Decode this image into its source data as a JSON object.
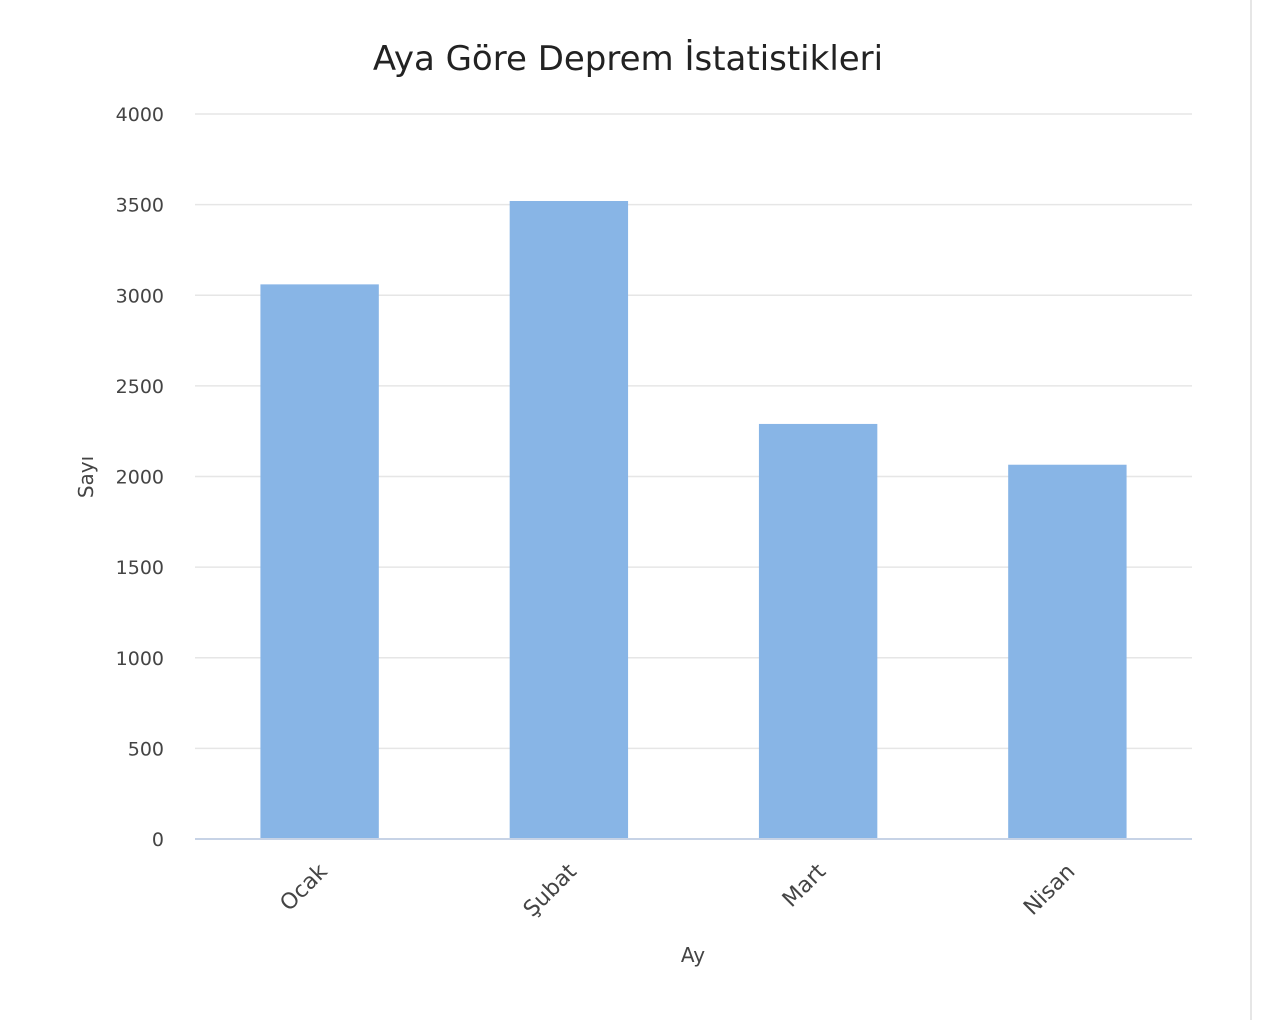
{
  "chart_data": {
    "type": "bar",
    "title": "Aya Göre Deprem İstatistikleri",
    "xlabel": "Ay",
    "ylabel": "Sayı",
    "categories": [
      "Ocak",
      "Şubat",
      "Mart",
      "Nisan"
    ],
    "values": [
      3060,
      3520,
      2290,
      2065
    ],
    "ylim": [
      0,
      4000
    ],
    "yticks": [
      "0",
      "500",
      "1000",
      "1500",
      "2000",
      "2500",
      "3000",
      "3500",
      "4000"
    ],
    "grid": true,
    "legend": "none",
    "colors": {
      "bar": "#88b5e6",
      "grid": "#e6e6e6",
      "axis": "#c7d3e6"
    }
  }
}
